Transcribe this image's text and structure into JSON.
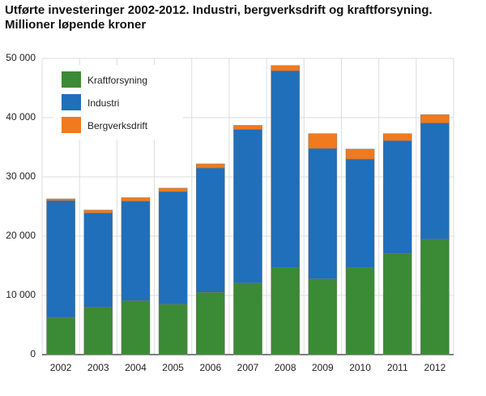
{
  "chart_data": {
    "type": "stacked_bar",
    "title": "Utførte investeringer 2002-2012. Industri, bergverksdrift og kraftforsyning.",
    "subtitle": "Millioner løpende kroner",
    "categories": [
      "2002",
      "2003",
      "2004",
      "2005",
      "2006",
      "2007",
      "2008",
      "2009",
      "2010",
      "2011",
      "2012"
    ],
    "series": [
      {
        "name": "Kraftforsyning",
        "color": "#3b8a35",
        "values": [
          6300,
          8000,
          9100,
          8500,
          10500,
          12100,
          14700,
          12800,
          14700,
          17100,
          19500
        ]
      },
      {
        "name": "Industri",
        "color": "#1f6fba",
        "values": [
          19700,
          15900,
          16800,
          19000,
          21000,
          25900,
          33200,
          22000,
          18300,
          19000,
          19600
        ]
      },
      {
        "name": "Bergverksdrift",
        "color": "#f07a1e",
        "values": [
          300,
          500,
          600,
          600,
          700,
          700,
          900,
          2500,
          1700,
          1200,
          1400
        ]
      }
    ],
    "ylim": [
      0,
      50000
    ],
    "yticks": [
      0,
      {
        "value": 10000,
        "label": "10 000"
      },
      {
        "value": 20000,
        "label": "20 000"
      },
      {
        "value": 30000,
        "label": "30 000"
      },
      {
        "value": 40000,
        "label": "40 000"
      },
      {
        "value": 50000,
        "label": "50 000"
      }
    ],
    "grid": true,
    "legend": "top-left"
  }
}
